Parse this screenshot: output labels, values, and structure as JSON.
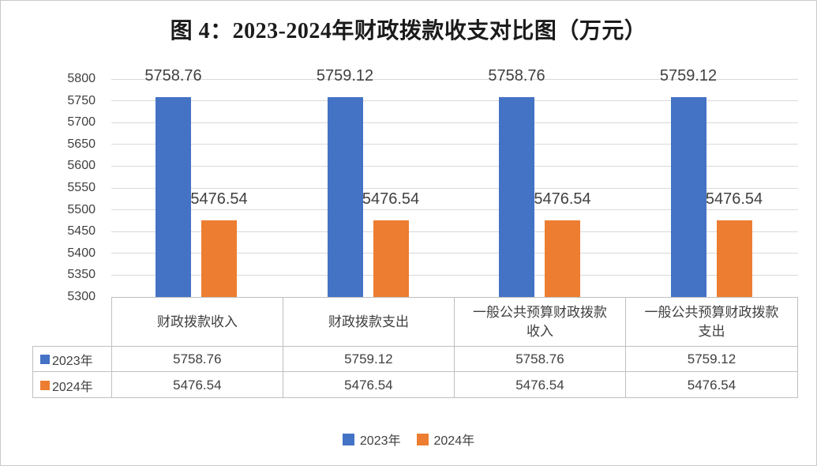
{
  "title": "图 4：2023-2024年财政拨款收支对比图（万元）",
  "colors": {
    "series_2023": "#4472C4",
    "series_2024": "#ED7D31",
    "gridline": "#D9D9D9",
    "table_border": "#BFBFBF",
    "text": "#404040",
    "title_text": "#1B1B1B"
  },
  "chart_data": {
    "type": "bar",
    "title": "图 4：2023-2024年财政拨款收支对比图（万元）",
    "categories": [
      "财政拨款收入",
      "财政拨款支出",
      "一般公共预算财政拨款收入",
      "一般公共预算财政拨款支出"
    ],
    "series": [
      {
        "name": "2023年",
        "color": "#4472C4",
        "values": [
          5758.76,
          5759.12,
          5758.76,
          5759.12
        ]
      },
      {
        "name": "2024年",
        "color": "#ED7D31",
        "values": [
          5476.54,
          5476.54,
          5476.54,
          5476.54
        ]
      }
    ],
    "xlabel": "",
    "ylabel": "",
    "ylim": [
      5300,
      5800
    ],
    "ytick_step": 50,
    "grid": true,
    "data_labels": true,
    "data_table": true,
    "legend_position": "bottom"
  },
  "legend": {
    "items": [
      {
        "label": "2023年",
        "color": "#4472C4"
      },
      {
        "label": "2024年",
        "color": "#ED7D31"
      }
    ]
  }
}
